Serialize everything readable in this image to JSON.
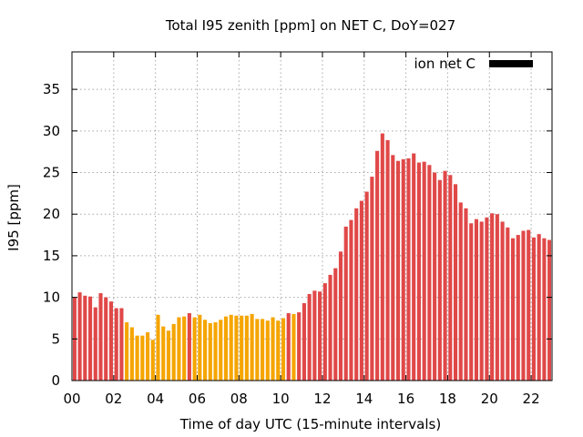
{
  "chart_data": {
    "type": "bar",
    "title": "Total I95 zenith [ppm] on NET C, DoY=027",
    "xlabel": "Time of day UTC (15-minute intervals)",
    "ylabel": "I95 [ppm]",
    "xlim": [
      0,
      23
    ],
    "ylim": [
      0,
      39.5
    ],
    "x_ticks": [
      0,
      2,
      4,
      6,
      8,
      10,
      12,
      14,
      16,
      18,
      20,
      22
    ],
    "x_tick_labels": [
      "00",
      "02",
      "04",
      "06",
      "08",
      "10",
      "12",
      "14",
      "16",
      "18",
      "20",
      "22"
    ],
    "y_ticks": [
      0,
      5,
      10,
      15,
      20,
      25,
      30,
      35
    ],
    "y_tick_labels": [
      "0",
      "5",
      "10",
      "15",
      "20",
      "25",
      "30",
      "35"
    ],
    "grid": true,
    "legend": {
      "label": "ion net C",
      "position": "top-right",
      "color": "#000000"
    },
    "colors": {
      "red": "#e04848",
      "orange": "#f5a500"
    },
    "series": [
      {
        "name": "ion net C",
        "start_hour": 0,
        "interval_hours": 0.25,
        "values": [
          10.0,
          10.6,
          10.2,
          10.1,
          8.8,
          10.5,
          10.0,
          9.5,
          8.7,
          8.7,
          7.0,
          6.4,
          5.4,
          5.4,
          5.8,
          4.9,
          7.9,
          6.5,
          6.0,
          6.8,
          7.6,
          7.7,
          8.1,
          7.6,
          7.9,
          7.3,
          6.9,
          7.0,
          7.3,
          7.7,
          7.9,
          7.8,
          7.8,
          7.8,
          8.0,
          7.4,
          7.4,
          7.2,
          7.6,
          7.2,
          7.5,
          8.1,
          8.0,
          8.2,
          9.3,
          10.4,
          10.8,
          10.7,
          11.7,
          12.7,
          13.5,
          15.5,
          18.5,
          19.3,
          20.7,
          21.6,
          22.7,
          24.5,
          27.6,
          29.7,
          28.9,
          27.1,
          26.4,
          26.6,
          26.7,
          27.3,
          26.2,
          26.3,
          25.9,
          25.0,
          24.1,
          25.2,
          24.7,
          23.6,
          21.4,
          20.7,
          18.9,
          19.4,
          19.1,
          19.6,
          20.1,
          20.0,
          19.1,
          18.4,
          17.1,
          17.5,
          18.0,
          18.1,
          17.2,
          17.6,
          17.1,
          16.9
        ],
        "colors": [
          "red",
          "red",
          "red",
          "red",
          "red",
          "red",
          "red",
          "red",
          "red",
          "red",
          "orange",
          "orange",
          "orange",
          "orange",
          "orange",
          "orange",
          "orange",
          "orange",
          "orange",
          "orange",
          "orange",
          "orange",
          "red",
          "orange",
          "orange",
          "orange",
          "orange",
          "orange",
          "orange",
          "orange",
          "orange",
          "orange",
          "orange",
          "orange",
          "orange",
          "orange",
          "orange",
          "orange",
          "orange",
          "orange",
          "orange",
          "red",
          "orange",
          "red",
          "red",
          "red",
          "red",
          "red",
          "red",
          "red",
          "red",
          "red",
          "red",
          "red",
          "red",
          "red",
          "red",
          "red",
          "red",
          "red",
          "red",
          "red",
          "red",
          "red",
          "red",
          "red",
          "red",
          "red",
          "red",
          "red",
          "red",
          "red",
          "red",
          "red",
          "red",
          "red",
          "red",
          "red",
          "red",
          "red",
          "red",
          "red",
          "red",
          "red",
          "red",
          "red",
          "red",
          "red",
          "red",
          "red",
          "red",
          "red"
        ]
      }
    ]
  }
}
